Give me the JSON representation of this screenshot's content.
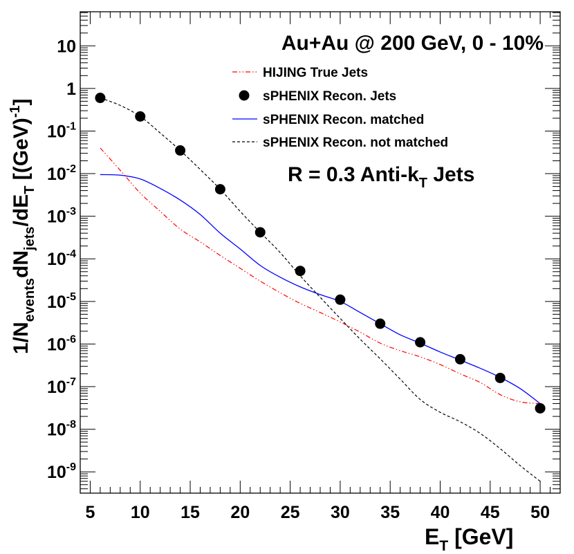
{
  "chart_data": {
    "type": "line",
    "y_scale": "log",
    "title_lines": {
      "system": "Au+Au @ 200 GeV, 0 - 10%",
      "jets_main": "R = 0.3 Anti-k",
      "jets_sub": "T",
      "jets_tail": " Jets"
    },
    "xlabel": {
      "main": "E",
      "sub": "T",
      "unit": " [GeV]"
    },
    "ylabel": {
      "p1": "1/N",
      "s1": "events",
      "p2": "dN",
      "s2": "jets",
      "p3": "/dE",
      "s3": "T",
      "p4": " [(GeV)",
      "sup": "-1",
      "p5": "]"
    },
    "xlim": [
      4,
      52
    ],
    "ylim_exp": [
      -9.5,
      1.8
    ],
    "x_ticks": [
      5,
      10,
      15,
      20,
      25,
      30,
      35,
      40,
      45,
      50
    ],
    "y_ticks": [
      {
        "exp": -9,
        "base": "10",
        "sup": "-9"
      },
      {
        "exp": -8,
        "base": "10",
        "sup": "-8"
      },
      {
        "exp": -7,
        "base": "10",
        "sup": "-7"
      },
      {
        "exp": -6,
        "base": "10",
        "sup": "-6"
      },
      {
        "exp": -5,
        "base": "10",
        "sup": "-5"
      },
      {
        "exp": -4,
        "base": "10",
        "sup": "-4"
      },
      {
        "exp": -3,
        "base": "10",
        "sup": "-3"
      },
      {
        "exp": -2,
        "base": "10",
        "sup": "-2"
      },
      {
        "exp": -1,
        "base": "10",
        "sup": "-1"
      },
      {
        "exp": 0,
        "base": "1",
        "sup": ""
      },
      {
        "exp": 1,
        "base": "10",
        "sup": ""
      }
    ],
    "series": [
      {
        "name": "HIJING True Jets",
        "style": "dashdot",
        "color": "#ff0000",
        "x": [
          6,
          8,
          10,
          12,
          14,
          16,
          18,
          20,
          22,
          24,
          26,
          28,
          30,
          32,
          34,
          36,
          38,
          40,
          42,
          44,
          46,
          48,
          50
        ],
        "y": [
          0.04,
          0.012,
          0.0035,
          0.0013,
          0.0005,
          0.00025,
          0.00012,
          6e-05,
          3e-05,
          1.6e-05,
          9e-06,
          5.5e-06,
          3.3e-06,
          1.9e-06,
          1.05e-06,
          7e-07,
          5e-07,
          3.3e-07,
          2e-07,
          1.25e-07,
          6.5e-08,
          4.4e-08,
          4e-08
        ]
      },
      {
        "name": "sPHENIX Recon. Jets",
        "style": "marker",
        "color": "#000000",
        "x": [
          6,
          10,
          14,
          18,
          22,
          26,
          30,
          34,
          38,
          42,
          46,
          50
        ],
        "y": [
          0.6,
          0.22,
          0.035,
          0.0043,
          0.00042,
          5.2e-05,
          1.1e-05,
          3e-06,
          1.1e-06,
          4.4e-07,
          1.6e-07,
          3.1e-08
        ]
      },
      {
        "name": "sPHENIX Recon. matched",
        "style": "solid",
        "color": "#0000ff",
        "x": [
          6,
          8,
          10,
          12,
          14,
          16,
          18,
          20,
          22,
          24,
          26,
          28,
          30,
          32,
          34,
          36,
          38,
          40,
          42,
          44,
          46,
          48,
          50
        ],
        "y": [
          0.0095,
          0.0092,
          0.0075,
          0.0045,
          0.0024,
          0.0011,
          0.0004,
          0.00017,
          7e-05,
          3.7e-05,
          2.2e-05,
          1.45e-05,
          1e-05,
          5.5e-06,
          3e-06,
          1.65e-06,
          1.05e-06,
          6.5e-07,
          4.2e-07,
          2.7e-07,
          1.65e-07,
          9e-08,
          4e-08
        ]
      },
      {
        "name": "sPHENIX Recon. not matched",
        "style": "dashed",
        "color": "#000000",
        "x": [
          6,
          8,
          10,
          12,
          14,
          16,
          18,
          20,
          22,
          24,
          26,
          28,
          30,
          32,
          34,
          36,
          38,
          40,
          42,
          44,
          46,
          48,
          50
        ],
        "y": [
          0.6,
          0.4,
          0.22,
          0.09,
          0.035,
          0.0125,
          0.0043,
          0.0013,
          0.00042,
          0.00014,
          4e-05,
          1.25e-05,
          4e-06,
          1.3e-06,
          4.5e-07,
          1.5e-07,
          5e-08,
          2.5e-08,
          1.5e-08,
          8e-09,
          3.5e-09,
          1.4e-09,
          6e-10
        ]
      }
    ]
  }
}
